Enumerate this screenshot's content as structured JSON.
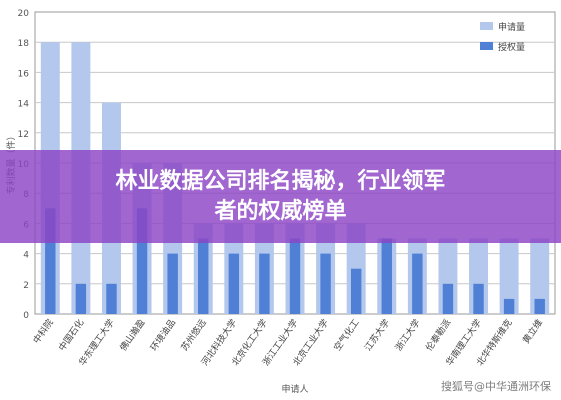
{
  "chart_data": {
    "type": "bar",
    "ylabel": "专利数量（件）",
    "xlabel": "申请人",
    "ylim": [
      0,
      20
    ],
    "yticks": [
      0,
      2,
      4,
      6,
      8,
      10,
      12,
      14,
      16,
      18,
      20
    ],
    "grid": true,
    "legend_position": "top-right",
    "categories": [
      "中科院",
      "中国石化",
      "华东理工大学",
      "佛山瀚盈",
      "环境油品",
      "苏州悠远",
      "河北科技大学",
      "北京化工大学",
      "浙江工业大学",
      "北京工业大学",
      "空气化工",
      "江苏大学",
      "浙江大学",
      "伦泰勒派",
      "华南理工大学",
      "北华特斯维克",
      "黄立维"
    ],
    "series": [
      {
        "name": "申请量",
        "color": "#b3c8ec",
        "values": [
          18,
          18,
          14,
          10,
          10,
          6,
          6,
          6,
          6,
          6,
          6,
          5,
          5,
          5,
          5,
          5,
          5
        ]
      },
      {
        "name": "授权量",
        "color": "#4f80d6",
        "values": [
          7,
          2,
          2,
          7,
          4,
          5,
          4,
          4,
          5,
          4,
          3,
          5,
          4,
          2,
          2,
          1,
          1
        ]
      }
    ]
  },
  "banner": {
    "line1": "林业数据公司排名揭秘，行业领军",
    "line2": "者的权威榜单"
  },
  "watermark": "搜狐号@中华通洲环保"
}
